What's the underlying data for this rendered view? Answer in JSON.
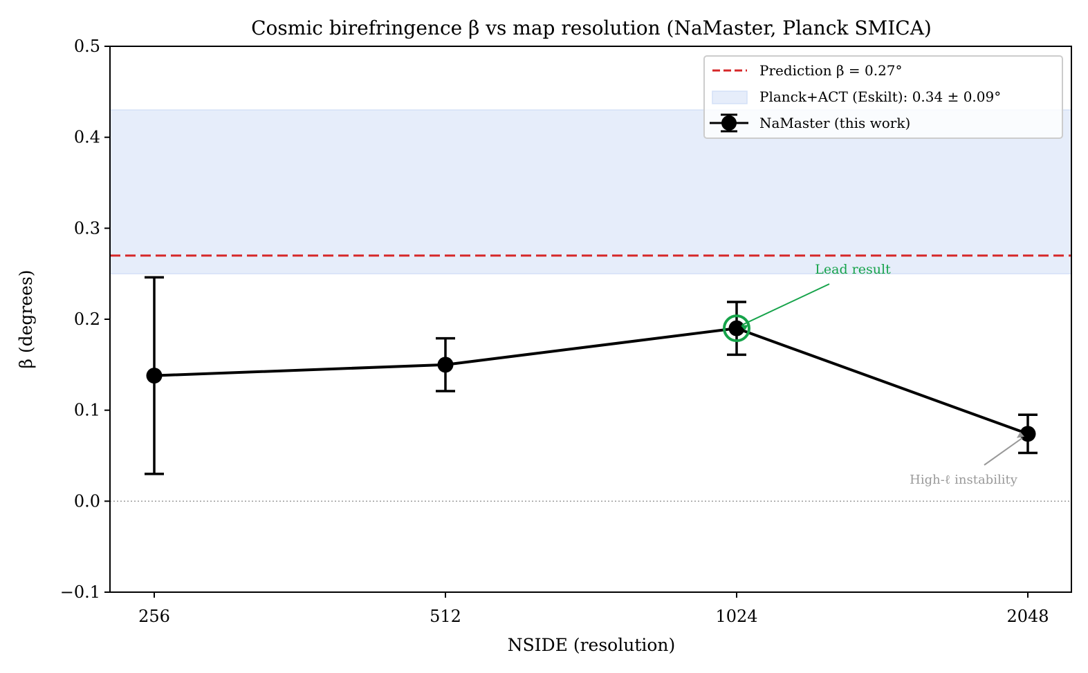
{
  "chart_data": {
    "type": "line",
    "title": "Cosmic birefringence β vs map resolution (NaMaster, Planck SMICA)",
    "xlabel": "NSIDE (resolution)",
    "ylabel": "β (degrees)",
    "categories": [
      "256",
      "512",
      "1024",
      "2048"
    ],
    "ylim": [
      -0.1,
      0.5
    ],
    "yticks": [
      "−0.1",
      "0.0",
      "0.1",
      "0.2",
      "0.3",
      "0.4",
      "0.5"
    ],
    "ytick_values": [
      -0.1,
      0.0,
      0.1,
      0.2,
      0.3,
      0.4,
      0.5
    ],
    "grid": false,
    "legend_position": "upper right",
    "series": [
      {
        "name": "NaMaster (this work)",
        "type": "errorbar-line",
        "color": "#000000",
        "values": [
          0.138,
          0.15,
          0.19,
          0.074
        ],
        "errors": [
          0.108,
          0.029,
          0.029,
          0.021
        ]
      }
    ],
    "reference_lines": [
      {
        "name": "Prediction β = 0.27°",
        "y": 0.27,
        "style": "dashed",
        "color": "#d62728"
      },
      {
        "name": "zero",
        "y": 0.0,
        "style": "dotted",
        "color": "#999999"
      }
    ],
    "bands": [
      {
        "name": "Planck+ACT (Eskilt): 0.34 ± 0.09°",
        "center": 0.34,
        "halfwidth": 0.09,
        "ymin": 0.25,
        "ymax": 0.43,
        "color": "#e6edfa"
      }
    ],
    "annotations": [
      {
        "text": "Lead result",
        "target": "1024",
        "color": "#16a34a",
        "highlight": "circle"
      },
      {
        "text": "High-ℓ instability",
        "target": "2048",
        "color": "#999999"
      }
    ]
  },
  "legend": {
    "items": [
      {
        "label": "Prediction β = 0.27°"
      },
      {
        "label": "Planck+ACT (Eskilt): 0.34 ± 0.09°"
      },
      {
        "label": "NaMaster (this work)"
      }
    ]
  }
}
